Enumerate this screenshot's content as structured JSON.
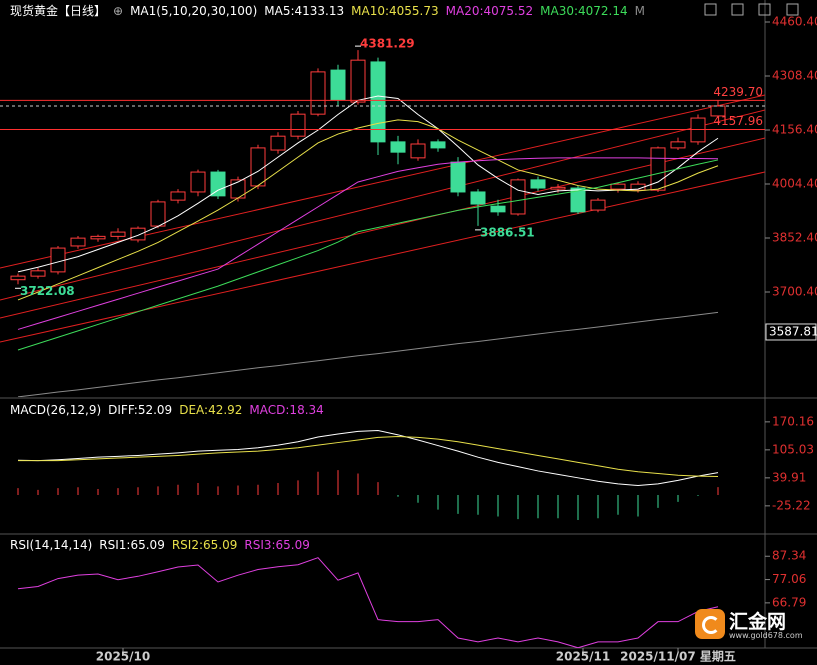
{
  "chart_data": [
    {
      "type": "candlestick",
      "title": "现货黄金【日线】",
      "indicator": "MA1(5,10,20,30,100)",
      "ylim": [
        3404.8,
        4494.2
      ],
      "yticks": [
        {
          "value": 4460.4,
          "label": "4460.40"
        },
        {
          "value": 4308.4,
          "label": "4308.40"
        },
        {
          "value": 4156.4,
          "label": "4156.40"
        },
        {
          "value": 4004.4,
          "label": "4004.40"
        },
        {
          "value": 3852.4,
          "label": "3852.40"
        },
        {
          "value": 3700.4,
          "label": "3700.40"
        }
      ],
      "ybox": 3587.81,
      "up_color": "#ff3c3c",
      "down_color": "#3ddc97",
      "candles": {
        "open": [
          3735,
          3745,
          3757,
          3830,
          3850,
          3857,
          3847,
          3886,
          3959,
          3982,
          4038,
          3965,
          3999,
          4100,
          4139,
          4201,
          4325,
          4235,
          4348,
          4123,
          4078,
          4123,
          4066,
          3982,
          3942,
          3920,
          4016,
          3990,
          3993,
          3931,
          3990,
          3987,
          3987,
          4106,
          4123,
          4196
        ],
        "high": [
          3752,
          3768,
          3830,
          3858,
          3862,
          3880,
          3885,
          3960,
          3990,
          4045,
          4044,
          4025,
          4115,
          4150,
          4210,
          4330,
          4340,
          4381.29,
          4360,
          4140,
          4130,
          4130,
          4080,
          3990,
          3960,
          4020,
          4025,
          4004,
          4000,
          3965,
          4008,
          4012,
          4110,
          4135,
          4200,
          4239.7
        ],
        "low": [
          3722.08,
          3738,
          3750,
          3822,
          3842,
          3848,
          3840,
          3880,
          3950,
          3970,
          3962,
          3955,
          3990,
          4090,
          4130,
          4195,
          4225,
          4228,
          4086,
          4060,
          4070,
          4095,
          3970,
          3886.51,
          3915,
          3915,
          3985,
          3980,
          3920,
          3925,
          3980,
          3980,
          3982,
          4100,
          4115,
          4190
        ],
        "close": [
          3745,
          3760,
          3824,
          3852,
          3857,
          3869,
          3880,
          3954,
          3982,
          4038,
          3971,
          4016,
          4106,
          4139,
          4201,
          4320,
          4241,
          4353,
          4123,
          4094,
          4117,
          4106,
          3982,
          3948,
          3926,
          4016,
          3993,
          3995,
          3926,
          3959,
          4004,
          4004,
          4106,
          4123,
          4190,
          4224
        ]
      },
      "series": [
        {
          "name": "MA5:4133.13",
          "color": "#ffffff",
          "values": [
            3757,
            3770,
            3785,
            3800,
            3820,
            3840,
            3860,
            3885,
            3915,
            3950,
            3987,
            4010,
            4040,
            4080,
            4120,
            4156,
            4200,
            4240,
            4252,
            4245,
            4200,
            4160,
            4110,
            4058,
            4020,
            3987,
            3975,
            3985,
            3988,
            3985,
            3987,
            3990,
            4010,
            4050,
            4095,
            4133.13
          ]
        },
        {
          "name": "MA10:4055.73",
          "color": "#e8e04a",
          "values": [
            3678,
            3700,
            3723,
            3746,
            3769,
            3792,
            3815,
            3840,
            3870,
            3900,
            3931,
            3965,
            4000,
            4040,
            4080,
            4120,
            4145,
            4162,
            4175,
            4185,
            4180,
            4160,
            4128,
            4100,
            4072,
            4044,
            4030,
            4015,
            4000,
            3990,
            3987,
            3985,
            3990,
            4010,
            4035,
            4055.73
          ]
        },
        {
          "name": "MA20:4075.52",
          "color": "#e040e0",
          "values": [
            3595,
            3612,
            3629,
            3646,
            3663,
            3680,
            3697,
            3714,
            3731,
            3748,
            3765,
            3800,
            3835,
            3870,
            3905,
            3940,
            3975,
            4010,
            4025,
            4040,
            4050,
            4060,
            4066,
            4070,
            4073,
            4075,
            4077,
            4078,
            4078,
            4078,
            4078,
            4078,
            4077,
            4076,
            4076,
            4075.52
          ]
        },
        {
          "name": "MA30:4072.14",
          "color": "#3ddc5a",
          "values": [
            3537,
            3555,
            3573,
            3591,
            3609,
            3627,
            3645,
            3663,
            3681,
            3699,
            3717,
            3737,
            3757,
            3777,
            3797,
            3817,
            3841,
            3870,
            3882,
            3894,
            3906,
            3918,
            3930,
            3940,
            3949,
            3958,
            3967,
            3976,
            3985,
            3995,
            4008,
            4021,
            4034,
            4047,
            4060,
            4072.14
          ]
        },
        {
          "name": "M",
          "color": "#8a8a8a",
          "values": [
            3405,
            3412,
            3419,
            3425,
            3432,
            3439,
            3446,
            3453,
            3459,
            3466,
            3473,
            3480,
            3487,
            3493,
            3500,
            3507,
            3514,
            3521,
            3527,
            3534,
            3541,
            3548,
            3555,
            3561,
            3568,
            3575,
            3582,
            3589,
            3595,
            3602,
            3609,
            3616,
            3623,
            3629,
            3636,
            3643
          ]
        }
      ],
      "annotations": [
        4381.29,
        3886.51,
        3722.08
      ],
      "price_lines": [
        {
          "value": 4239.7,
          "label": "4239.70"
        },
        4157.96
      ]
    },
    {
      "type": "macd",
      "title": "MACD(26,12,9)",
      "ylim": [
        -81.4,
        193.1
      ],
      "yticks": [
        170.16,
        105.03,
        39.91,
        -25.22
      ],
      "up_color": "#ff3c3c",
      "down_color": "#3ddc97",
      "values": [
        16,
        12,
        16,
        18,
        14,
        16,
        18,
        20,
        24,
        28,
        20,
        22,
        24,
        28,
        34,
        54,
        58,
        50,
        30,
        -4,
        -18,
        -34,
        -44,
        -46,
        -50,
        -56,
        -54,
        -54,
        -58,
        -54,
        -46,
        -50,
        -30,
        -16,
        -2,
        18.34
      ],
      "series": [
        {
          "name": "DIFF:52.09",
          "color": "#ffffff",
          "values": [
            81,
            80,
            82,
            85,
            88,
            90,
            92,
            95,
            98,
            102,
            104,
            106,
            110,
            116,
            124,
            135,
            142,
            148,
            150,
            140,
            128,
            115,
            102,
            88,
            76,
            66,
            56,
            48,
            40,
            32,
            26,
            22,
            26,
            34,
            44,
            52.09
          ]
        },
        {
          "name": "DEA:42.92",
          "color": "#e8e04a",
          "values": [
            80,
            80,
            80,
            82,
            84,
            86,
            88,
            90,
            92,
            95,
            98,
            100,
            102,
            106,
            110,
            116,
            122,
            128,
            134,
            136,
            134,
            130,
            124,
            116,
            108,
            100,
            92,
            84,
            76,
            68,
            60,
            54,
            50,
            46,
            44,
            42.92
          ]
        },
        {
          "name": "MACD:18.34",
          "color": "#e040e0"
        }
      ]
    },
    {
      "type": "line",
      "title": "RSI(14,14,14)",
      "ylim": [
        46.9,
        94.5
      ],
      "yticks": [
        87.34,
        77.06,
        66.79
      ],
      "series": [
        {
          "name": "RSI1:65.09",
          "color": "#ffffff"
        },
        {
          "name": "RSI2:65.09",
          "color": "#e8e04a"
        },
        {
          "name": "RSI3:65.09",
          "color": "#e040e0",
          "values": [
            73,
            74,
            77.5,
            79,
            79.5,
            77,
            78.5,
            80.5,
            82.6,
            83.5,
            76,
            79,
            81.5,
            82.7,
            83.6,
            86.7,
            76.8,
            80,
            59.4,
            58.5,
            58.5,
            59.4,
            51.3,
            49.6,
            51.3,
            49.6,
            51.3,
            49.6,
            47,
            49.6,
            49.6,
            51.3,
            58.5,
            58.5,
            63,
            65.09
          ]
        }
      ],
      "xticks": [
        {
          "value": 5.25,
          "label": "2025/10"
        },
        {
          "value": 28.25,
          "label": "2025/11"
        },
        {
          "value": 33,
          "label": "2025/11/07 星期五"
        }
      ]
    }
  ],
  "logo": {
    "name": "汇金网",
    "url": "www.gold678.com"
  }
}
